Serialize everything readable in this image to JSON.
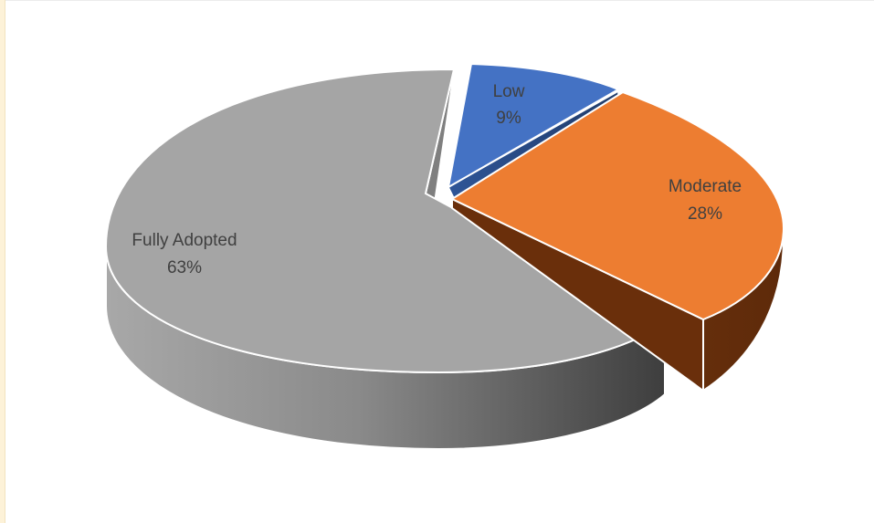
{
  "chart_data": {
    "type": "pie",
    "style": "3d-exploded",
    "slices": [
      {
        "key": "low",
        "label": "Low",
        "value": 9,
        "value_label": "9%",
        "color": "#4472C4",
        "side_color": "#2f5597"
      },
      {
        "key": "moderate",
        "label": "Moderate",
        "value": 28,
        "value_label": "28%",
        "color": "#ED7D31",
        "side_color": "#843c0c"
      },
      {
        "key": "fully",
        "label": "Fully Adopted",
        "value": 63,
        "value_label": "63%",
        "color": "#A5A5A5",
        "side_color": "#6b6b6b"
      }
    ],
    "legend": "none"
  }
}
